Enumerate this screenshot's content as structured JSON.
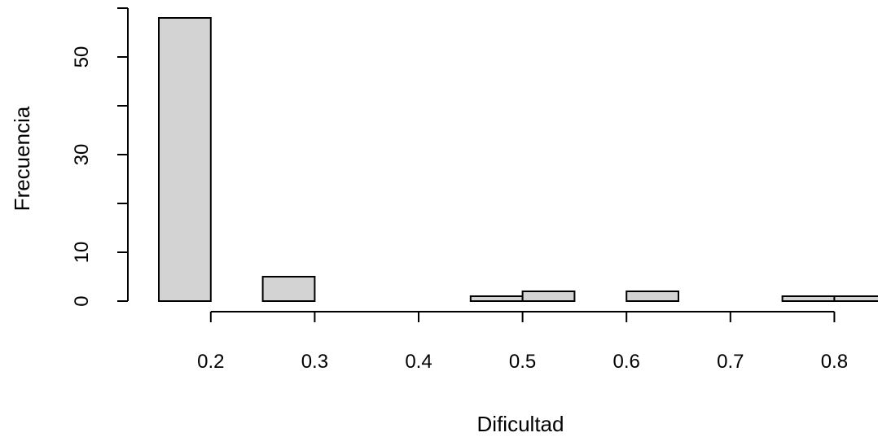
{
  "chart_data": {
    "type": "bar",
    "subtype": "histogram",
    "title": "",
    "xlabel": "Dificultad",
    "ylabel": "Frecuencia",
    "bins": [
      {
        "start": 0.15,
        "end": 0.2,
        "count": 58
      },
      {
        "start": 0.2,
        "end": 0.25,
        "count": 0
      },
      {
        "start": 0.25,
        "end": 0.3,
        "count": 5
      },
      {
        "start": 0.3,
        "end": 0.35,
        "count": 0
      },
      {
        "start": 0.35,
        "end": 0.4,
        "count": 0
      },
      {
        "start": 0.4,
        "end": 0.45,
        "count": 0
      },
      {
        "start": 0.45,
        "end": 0.5,
        "count": 1
      },
      {
        "start": 0.5,
        "end": 0.55,
        "count": 2
      },
      {
        "start": 0.55,
        "end": 0.6,
        "count": 0
      },
      {
        "start": 0.6,
        "end": 0.65,
        "count": 2
      },
      {
        "start": 0.65,
        "end": 0.7,
        "count": 0
      },
      {
        "start": 0.7,
        "end": 0.75,
        "count": 0
      },
      {
        "start": 0.75,
        "end": 0.8,
        "count": 1
      },
      {
        "start": 0.8,
        "end": 0.85,
        "count": 1
      }
    ],
    "x_ticks": [
      "0.2",
      "0.3",
      "0.4",
      "0.5",
      "0.6",
      "0.7",
      "0.8"
    ],
    "x_tick_values": [
      0.2,
      0.3,
      0.4,
      0.5,
      0.6,
      0.7,
      0.8
    ],
    "y_ticks": [
      0,
      10,
      20,
      30,
      40,
      50,
      60
    ],
    "y_tick_labels": [
      "0",
      "10",
      "30",
      "50"
    ],
    "y_labeled_values": [
      0,
      10,
      30,
      50
    ],
    "xlim": [
      0.15,
      0.85
    ],
    "ylim": [
      0,
      60
    ],
    "grid": false,
    "legend": "none",
    "colors": {
      "bar_fill": "#d3d3d3",
      "bar_stroke": "#000000",
      "axis": "#000000",
      "text": "#000000"
    }
  }
}
